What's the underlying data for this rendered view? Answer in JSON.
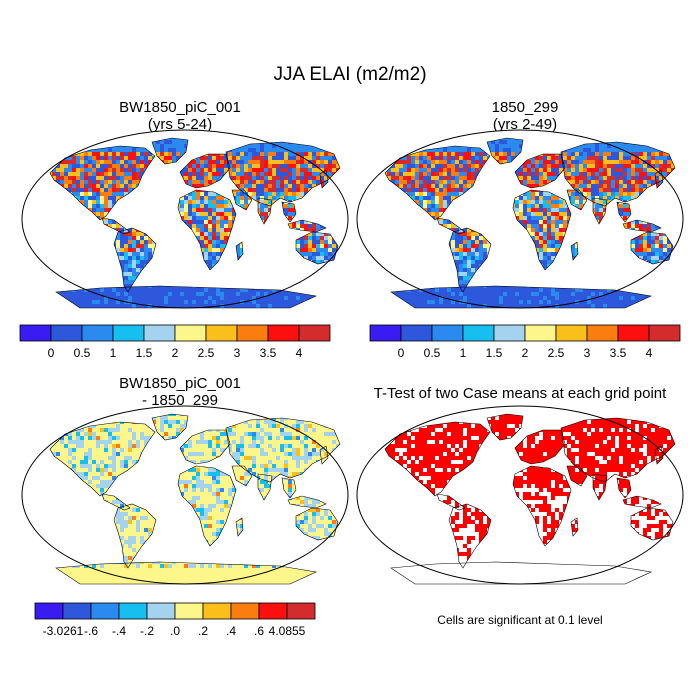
{
  "figure": {
    "title": "JJA ELAI (m2/m2)",
    "note": "Cells are significant at 0.1 level"
  },
  "panels": [
    {
      "id": "case",
      "title_line1": "BW1850_piC_001",
      "title_line2": "(yrs 5-24)",
      "field": "mean"
    },
    {
      "id": "ref",
      "title_line1": "1850_299",
      "title_line2": "(yrs 2-49)",
      "field": "mean"
    },
    {
      "id": "diff",
      "title_line1": "BW1850_piC_001",
      "title_line2": "- 1850_299",
      "field": "difference"
    },
    {
      "id": "ttest",
      "title_line1": "T-Test of two Case means at each grid point",
      "title_line2": "",
      "field": "significance"
    }
  ],
  "colorbars": {
    "mean": {
      "colors": [
        "#3a1cf2",
        "#2e58dc",
        "#2b8af0",
        "#17bff0",
        "#a3d3ee",
        "#fdf68a",
        "#fbbf1b",
        "#fb7d10",
        "#fb0f0f",
        "#d42c2c"
      ],
      "labels": [
        "0",
        "0.5",
        "1",
        "1.5",
        "2",
        "2.5",
        "3",
        "3.5",
        "4"
      ]
    },
    "diff": {
      "colors": [
        "#3a1cf2",
        "#2e58dc",
        "#2b8af0",
        "#17bff0",
        "#a3d3ee",
        "#fdf68a",
        "#fbbf1b",
        "#fb7d10",
        "#fb0f0f",
        "#d42c2c"
      ],
      "labels": [
        "-3.0261",
        "-.6",
        "-.4",
        "-.2",
        ".0",
        ".2",
        ".4",
        ".6",
        "4.0855"
      ]
    }
  },
  "significance_color": "#ff0000"
}
